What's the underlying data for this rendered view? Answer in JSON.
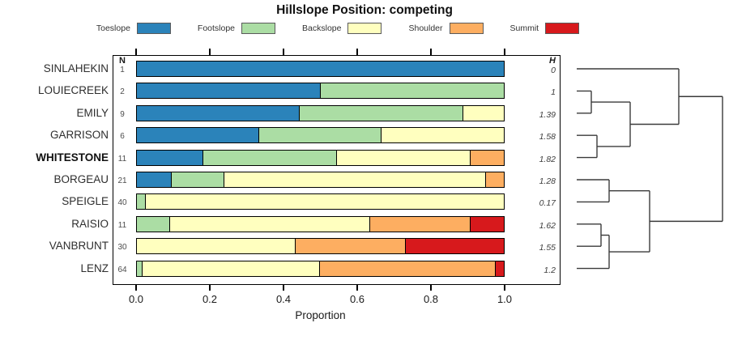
{
  "title": "Hillslope Position: competing",
  "columns": {
    "n_header": "N",
    "h_header": "H"
  },
  "legend": [
    {
      "label": "Toeslope",
      "color": "#2B83BA"
    },
    {
      "label": "Footslope",
      "color": "#ABDDA4"
    },
    {
      "label": "Backslope",
      "color": "#FFFFBF"
    },
    {
      "label": "Shoulder",
      "color": "#FDAE61"
    },
    {
      "label": "Summit",
      "color": "#D7191C"
    }
  ],
  "x_axis": {
    "label": "Proportion",
    "ticks": [
      "0.0",
      "0.2",
      "0.4",
      "0.6",
      "0.8",
      "1.0"
    ],
    "tick_values": [
      0,
      0.2,
      0.4,
      0.6,
      0.8,
      1.0
    ],
    "range": [
      0,
      1
    ]
  },
  "chart_data": {
    "type": "bar",
    "orientation": "horizontal-stacked",
    "title": "Hillslope Position: competing",
    "xlabel": "Proportion",
    "xlim": [
      0,
      1
    ],
    "grid": false,
    "legend_position": "top",
    "categories": [
      "Toeslope",
      "Footslope",
      "Backslope",
      "Shoulder",
      "Summit"
    ],
    "colors": [
      "#2B83BA",
      "#ABDDA4",
      "#FFFFBF",
      "#FDAE61",
      "#D7191C"
    ],
    "rows": [
      {
        "name": "SINLAHEKIN",
        "n": 1,
        "h": "0",
        "bold": false,
        "values": [
          1,
          0,
          0,
          0,
          0
        ]
      },
      {
        "name": "LOUIECREEK",
        "n": 2,
        "h": "1",
        "bold": false,
        "values": [
          0.5,
          0.5,
          0,
          0,
          0
        ]
      },
      {
        "name": "EMILY",
        "n": 9,
        "h": "1.39",
        "bold": false,
        "values": [
          0.444,
          0.445,
          0.111,
          0,
          0
        ]
      },
      {
        "name": "GARRISON",
        "n": 6,
        "h": "1.58",
        "bold": false,
        "values": [
          0.333,
          0.334,
          0.333,
          0,
          0
        ]
      },
      {
        "name": "WHITESTONE",
        "n": 11,
        "h": "1.82",
        "bold": true,
        "values": [
          0.182,
          0.364,
          0.363,
          0.091,
          0
        ]
      },
      {
        "name": "BORGEAU",
        "n": 21,
        "h": "1.28",
        "bold": false,
        "values": [
          0.095,
          0.143,
          0.714,
          0.048,
          0
        ]
      },
      {
        "name": "SPEIGLE",
        "n": 40,
        "h": "0.17",
        "bold": false,
        "values": [
          0,
          0.025,
          0.975,
          0,
          0
        ]
      },
      {
        "name": "RAISIO",
        "n": 11,
        "h": "1.62",
        "bold": false,
        "values": [
          0,
          0.091,
          0.545,
          0.273,
          0.091
        ]
      },
      {
        "name": "VANBRUNT",
        "n": 30,
        "h": "1.55",
        "bold": false,
        "values": [
          0,
          0,
          0.433,
          0.3,
          0.267
        ]
      },
      {
        "name": "LENZ",
        "n": 64,
        "h": "1.2",
        "bold": false,
        "values": [
          0,
          0.016,
          0.484,
          0.479,
          0.021
        ]
      }
    ],
    "dendrogram": {
      "leaf_order": [
        "SINLAHEKIN",
        "LOUIECREEK",
        "EMILY",
        "GARRISON",
        "WHITESTONE",
        "BORGEAU",
        "SPEIGLE",
        "RAISIO",
        "VANBRUNT",
        "LENZ"
      ],
      "leaf_x": 22,
      "tree": {
        "x": 202,
        "children": [
          {
            "x": 148,
            "children": [
              {
                "leaf": 0
              },
              {
                "x": 88,
                "children": [
                  {
                    "x": 40,
                    "children": [
                      {
                        "leaf": 1
                      },
                      {
                        "leaf": 2
                      }
                    ]
                  },
                  {
                    "x": 47,
                    "children": [
                      {
                        "leaf": 3
                      },
                      {
                        "leaf": 4
                      }
                    ]
                  }
                ]
              }
            ]
          },
          {
            "x": 112,
            "children": [
              {
                "x": 62,
                "children": [
                  {
                    "leaf": 5
                  },
                  {
                    "leaf": 6
                  }
                ]
              },
              {
                "x": 62,
                "children": [
                  {
                    "x": 52,
                    "children": [
                      {
                        "leaf": 7
                      },
                      {
                        "leaf": 8
                      }
                    ]
                  },
                  {
                    "leaf": 9
                  }
                ]
              }
            ]
          }
        ]
      }
    }
  }
}
